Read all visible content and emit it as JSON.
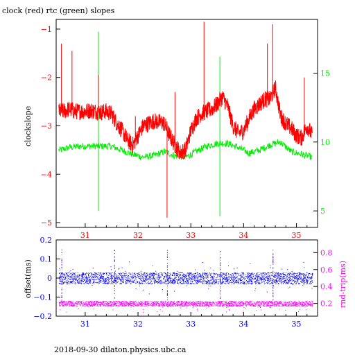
{
  "title": "clock (red) rtc (green) slopes",
  "footer": "2018-09-30  dilaton.physics.ubc.ca",
  "colors": {
    "clock": "#ff0000",
    "rtc": "#00ee00",
    "offset": "#0000ff",
    "rndtrip": "#ff00ff",
    "axis": "#000000"
  },
  "chart_data": [
    {
      "type": "line",
      "title": "clock (red) rtc (green) slopes",
      "ylabel": "clockslope",
      "xlim": [
        30.45,
        35.4
      ],
      "ylim": [
        -5.1,
        -0.8
      ],
      "y2lim": [
        3.8,
        18.9
      ],
      "xticks": [
        31,
        32,
        33,
        34,
        35
      ],
      "yticks": [
        -5,
        -4,
        -3,
        -2,
        -1
      ],
      "y2ticks": [
        5,
        10,
        15
      ],
      "series": [
        {
          "name": "clock",
          "axis": "left",
          "x": [
            30.5,
            30.6,
            30.7,
            30.8,
            30.9,
            31.0,
            31.1,
            31.2,
            31.3,
            31.4,
            31.5,
            31.6,
            31.7,
            31.8,
            31.9,
            32.0,
            32.1,
            32.2,
            32.3,
            32.4,
            32.5,
            32.6,
            32.7,
            32.8,
            32.9,
            33.0,
            33.1,
            33.2,
            33.3,
            33.4,
            33.5,
            33.6,
            33.7,
            33.8,
            33.9,
            34.0,
            34.1,
            34.2,
            34.3,
            34.4,
            34.5,
            34.6,
            34.7,
            34.8,
            34.9,
            35.0,
            35.1,
            35.2,
            35.3
          ],
          "values": [
            -2.7,
            -2.7,
            -2.65,
            -2.7,
            -2.7,
            -2.7,
            -2.68,
            -2.7,
            -2.72,
            -2.7,
            -2.75,
            -2.95,
            -3.1,
            -3.3,
            -3.4,
            -3.2,
            -3.0,
            -2.95,
            -2.9,
            -2.92,
            -2.95,
            -3.2,
            -3.4,
            -3.55,
            -3.5,
            -3.1,
            -2.85,
            -2.75,
            -2.7,
            -2.65,
            -2.55,
            -2.4,
            -2.6,
            -3.0,
            -3.15,
            -3.1,
            -2.85,
            -2.65,
            -2.55,
            -2.45,
            -2.45,
            -2.2,
            -2.8,
            -2.95,
            -3.05,
            -3.2,
            -3.25,
            -3.0,
            -3.2
          ],
          "spikes": [
            {
              "x": 30.55,
              "y": -1.3
            },
            {
              "x": 30.75,
              "y": -1.45
            },
            {
              "x": 31.25,
              "y": -1.95
            },
            {
              "x": 31.95,
              "y": -2.8
            },
            {
              "x": 32.55,
              "y": -4.9
            },
            {
              "x": 32.7,
              "y": -2.3
            },
            {
              "x": 33.25,
              "y": -0.85
            },
            {
              "x": 34.45,
              "y": -1.3
            },
            {
              "x": 34.55,
              "y": -0.9
            },
            {
              "x": 35.15,
              "y": -2.0
            }
          ]
        },
        {
          "name": "rtc",
          "axis": "right",
          "x": [
            30.5,
            30.7,
            30.9,
            31.1,
            31.3,
            31.5,
            31.7,
            31.9,
            32.1,
            32.3,
            32.5,
            32.7,
            32.9,
            33.1,
            33.3,
            33.5,
            33.7,
            33.9,
            34.1,
            34.3,
            34.5,
            34.7,
            34.9,
            35.1,
            35.3
          ],
          "values": [
            9.4,
            9.6,
            9.7,
            9.7,
            9.7,
            9.7,
            9.4,
            9.1,
            8.9,
            9.0,
            9.3,
            9.0,
            8.9,
            9.3,
            9.7,
            9.9,
            9.9,
            9.6,
            9.2,
            9.4,
            9.8,
            10.0,
            9.3,
            9.1,
            8.9
          ],
          "spikes": [
            {
              "x": 31.25,
              "y": 18.0
            },
            {
              "x": 31.25,
              "y": 5.0
            },
            {
              "x": 33.55,
              "y": 16.2
            },
            {
              "x": 33.55,
              "y": 4.6
            }
          ]
        }
      ]
    },
    {
      "type": "scatter",
      "ylabel": "offset(ms)",
      "y2label": "rnd-trip(ms)",
      "xlim": [
        30.45,
        35.4
      ],
      "ylim": [
        -0.2,
        0.2
      ],
      "y2lim": [
        0.05,
        0.95
      ],
      "xticks": [
        31,
        32,
        33,
        34,
        35
      ],
      "yticks": [
        -0.2,
        -0.1,
        0,
        0.1,
        0.2
      ],
      "y2ticks": [
        0.2,
        0.4,
        0.6,
        0.8
      ],
      "series": [
        {
          "name": "offset",
          "axis": "left",
          "center": 0.0,
          "spread": 0.03,
          "spikes_x": [
            30.55,
            31.55,
            32.55,
            33.55,
            34.55
          ]
        },
        {
          "name": "rnd-trip",
          "axis": "right",
          "center": 0.2,
          "spread": 0.03,
          "spikes_x": [
            30.55,
            31.55,
            32.55,
            33.55,
            34.55
          ]
        }
      ]
    }
  ]
}
